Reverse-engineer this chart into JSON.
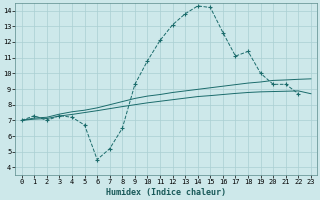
{
  "title": "",
  "xlabel": "Humidex (Indice chaleur)",
  "ylabel": "",
  "bg_color": "#cde8ea",
  "grid_color": "#aacfd2",
  "line_color": "#1a6b6b",
  "xlim": [
    -0.5,
    23.5
  ],
  "ylim": [
    3.5,
    14.5
  ],
  "xticks": [
    0,
    1,
    2,
    3,
    4,
    5,
    6,
    7,
    8,
    9,
    10,
    11,
    12,
    13,
    14,
    15,
    16,
    17,
    18,
    19,
    20,
    21,
    22,
    23
  ],
  "yticks": [
    4,
    5,
    6,
    7,
    8,
    9,
    10,
    11,
    12,
    13,
    14
  ],
  "line1_x": [
    0,
    1,
    2,
    3,
    4,
    5,
    6,
    7,
    8,
    9,
    10,
    11,
    12,
    13,
    14,
    15,
    16,
    17,
    18,
    19,
    20,
    21,
    22
  ],
  "line1_y": [
    7.0,
    7.3,
    7.0,
    7.3,
    7.2,
    6.7,
    4.5,
    5.2,
    6.5,
    9.3,
    10.8,
    12.1,
    13.1,
    13.8,
    14.3,
    14.2,
    12.6,
    11.1,
    11.4,
    10.0,
    9.3,
    9.3,
    8.7
  ],
  "line2_x": [
    0,
    1,
    2,
    3,
    4,
    5,
    6,
    7,
    8,
    9,
    10,
    11,
    12,
    13,
    14,
    15,
    16,
    17,
    18,
    19,
    20,
    21,
    22,
    23
  ],
  "line2_y": [
    7.0,
    7.15,
    7.2,
    7.4,
    7.55,
    7.65,
    7.8,
    8.0,
    8.2,
    8.4,
    8.55,
    8.65,
    8.78,
    8.88,
    8.98,
    9.08,
    9.18,
    9.28,
    9.38,
    9.45,
    9.55,
    9.58,
    9.62,
    9.65
  ],
  "line3_x": [
    0,
    1,
    2,
    3,
    4,
    5,
    6,
    7,
    8,
    9,
    10,
    11,
    12,
    13,
    14,
    15,
    16,
    17,
    18,
    19,
    20,
    21,
    22,
    23
  ],
  "line3_y": [
    7.0,
    7.08,
    7.12,
    7.28,
    7.38,
    7.5,
    7.62,
    7.75,
    7.88,
    8.0,
    8.12,
    8.22,
    8.32,
    8.42,
    8.52,
    8.58,
    8.65,
    8.72,
    8.78,
    8.82,
    8.84,
    8.86,
    8.88,
    8.7
  ]
}
